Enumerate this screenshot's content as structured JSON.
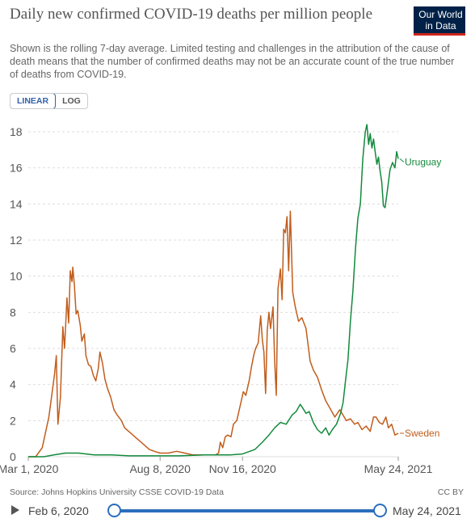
{
  "header": {
    "title": "Daily new confirmed COVID-19 deaths per million people",
    "subtitle": "Shown is the rolling 7-day average. Limited testing and challenges in the attribution of the cause of death means that the number of confirmed deaths may not be an accurate count of the true number of deaths from COVID-19.",
    "logo_line1": "Our World",
    "logo_line2": "in Data"
  },
  "scale_toggle": {
    "linear_label": "LINEAR",
    "log_label": "LOG",
    "active": "LINEAR"
  },
  "footer": {
    "source": "Source: Johns Hopkins University CSSE COVID-19 Data",
    "license": "CC BY"
  },
  "timeline": {
    "start_label": "Feb 6, 2020",
    "end_label": "May 24, 2021"
  },
  "colors": {
    "sweden": "#c15d1c",
    "uruguay": "#138a3c",
    "grid": "#dddddd",
    "slider": "#2c6ebc"
  },
  "chart_data": {
    "type": "line",
    "title": "Daily new confirmed COVID-19 deaths per million people",
    "xlabel": "",
    "ylabel": "",
    "x_range": [
      "2020-03-01",
      "2021-05-24"
    ],
    "ylim": [
      0,
      18
    ],
    "y_ticks": [
      0,
      2,
      4,
      6,
      8,
      10,
      12,
      14,
      16,
      18
    ],
    "x_tick_labels": [
      "Mar 1, 2020",
      "Aug 8, 2020",
      "Nov 16, 2020",
      "May 24, 2021"
    ],
    "x_tick_dates": [
      "2020-03-01",
      "2020-08-08",
      "2020-11-16",
      "2021-05-24"
    ],
    "grid": "horizontal",
    "legend": "end-of-line labels",
    "series": [
      {
        "name": "Sweden",
        "points": [
          [
            "2020-03-01",
            0
          ],
          [
            "2020-03-10",
            0
          ],
          [
            "2020-03-18",
            0.5
          ],
          [
            "2020-03-26",
            2.2
          ],
          [
            "2020-04-02",
            4.6
          ],
          [
            "2020-04-04",
            5.6
          ],
          [
            "2020-04-06",
            1.8
          ],
          [
            "2020-04-09",
            3.3
          ],
          [
            "2020-04-12",
            7.2
          ],
          [
            "2020-04-14",
            6.0
          ],
          [
            "2020-04-17",
            8.8
          ],
          [
            "2020-04-19",
            7.4
          ],
          [
            "2020-04-21",
            10.3
          ],
          [
            "2020-04-23",
            9.7
          ],
          [
            "2020-04-24",
            10.5
          ],
          [
            "2020-04-26",
            9.5
          ],
          [
            "2020-04-28",
            7.9
          ],
          [
            "2020-04-30",
            8.1
          ],
          [
            "2020-05-03",
            7.3
          ],
          [
            "2020-05-05",
            6.4
          ],
          [
            "2020-05-08",
            6.8
          ],
          [
            "2020-05-10",
            5.6
          ],
          [
            "2020-05-13",
            5.1
          ],
          [
            "2020-05-16",
            5.0
          ],
          [
            "2020-05-19",
            4.5
          ],
          [
            "2020-05-22",
            4.2
          ],
          [
            "2020-05-25",
            4.9
          ],
          [
            "2020-05-27",
            5.8
          ],
          [
            "2020-05-30",
            5.2
          ],
          [
            "2020-06-02",
            4.3
          ],
          [
            "2020-06-05",
            3.8
          ],
          [
            "2020-06-09",
            3.3
          ],
          [
            "2020-06-13",
            2.6
          ],
          [
            "2020-06-17",
            2.3
          ],
          [
            "2020-06-22",
            2.0
          ],
          [
            "2020-06-26",
            1.6
          ],
          [
            "2020-07-01",
            1.4
          ],
          [
            "2020-07-06",
            1.2
          ],
          [
            "2020-07-11",
            1.0
          ],
          [
            "2020-07-16",
            0.8
          ],
          [
            "2020-07-21",
            0.6
          ],
          [
            "2020-07-26",
            0.4
          ],
          [
            "2020-08-01",
            0.3
          ],
          [
            "2020-08-08",
            0.2
          ],
          [
            "2020-08-18",
            0.2
          ],
          [
            "2020-08-28",
            0.3
          ],
          [
            "2020-09-07",
            0.2
          ],
          [
            "2020-09-17",
            0.1
          ],
          [
            "2020-09-27",
            0.1
          ],
          [
            "2020-10-07",
            0.1
          ],
          [
            "2020-10-14",
            0.1
          ],
          [
            "2020-10-18",
            0.2
          ],
          [
            "2020-10-20",
            0.8
          ],
          [
            "2020-10-23",
            0.5
          ],
          [
            "2020-10-26",
            1.1
          ],
          [
            "2020-10-29",
            1.2
          ],
          [
            "2020-11-02",
            1.1
          ],
          [
            "2020-11-05",
            1.8
          ],
          [
            "2020-11-09",
            2.0
          ],
          [
            "2020-11-13",
            2.8
          ],
          [
            "2020-11-17",
            3.6
          ],
          [
            "2020-11-20",
            3.4
          ],
          [
            "2020-11-24",
            4.2
          ],
          [
            "2020-11-27",
            5.0
          ],
          [
            "2020-11-30",
            5.7
          ],
          [
            "2020-12-02",
            6.0
          ],
          [
            "2020-12-05",
            6.3
          ],
          [
            "2020-12-08",
            7.8
          ],
          [
            "2020-12-10",
            6.5
          ],
          [
            "2020-12-12",
            5.8
          ],
          [
            "2020-12-14",
            3.5
          ],
          [
            "2020-12-16",
            7.0
          ],
          [
            "2020-12-18",
            8.0
          ],
          [
            "2020-12-20",
            7.1
          ],
          [
            "2020-12-23",
            8.3
          ],
          [
            "2020-12-25",
            5.3
          ],
          [
            "2020-12-27",
            3.4
          ],
          [
            "2020-12-29",
            9.3
          ],
          [
            "2021-01-01",
            10.4
          ],
          [
            "2021-01-03",
            8.7
          ],
          [
            "2021-01-05",
            12.6
          ],
          [
            "2021-01-07",
            12.4
          ],
          [
            "2021-01-09",
            13.3
          ],
          [
            "2021-01-11",
            10.3
          ],
          [
            "2021-01-13",
            13.6
          ],
          [
            "2021-01-16",
            9.1
          ],
          [
            "2021-01-19",
            8.3
          ],
          [
            "2021-01-23",
            7.5
          ],
          [
            "2021-01-27",
            7.7
          ],
          [
            "2021-02-01",
            7.1
          ],
          [
            "2021-02-06",
            5.3
          ],
          [
            "2021-02-10",
            4.8
          ],
          [
            "2021-02-15",
            4.4
          ],
          [
            "2021-02-20",
            3.7
          ],
          [
            "2021-02-25",
            3.1
          ],
          [
            "2021-03-02",
            2.7
          ],
          [
            "2021-03-08",
            2.2
          ],
          [
            "2021-03-14",
            2.6
          ],
          [
            "2021-03-18",
            2.3
          ],
          [
            "2021-03-22",
            2.0
          ],
          [
            "2021-03-27",
            2.1
          ],
          [
            "2021-04-01",
            1.8
          ],
          [
            "2021-04-05",
            1.9
          ],
          [
            "2021-04-10",
            1.5
          ],
          [
            "2021-04-15",
            1.7
          ],
          [
            "2021-04-20",
            1.4
          ],
          [
            "2021-04-24",
            2.2
          ],
          [
            "2021-04-27",
            2.2
          ],
          [
            "2021-05-01",
            1.9
          ],
          [
            "2021-05-05",
            1.8
          ],
          [
            "2021-05-09",
            2.2
          ],
          [
            "2021-05-12",
            1.6
          ],
          [
            "2021-05-16",
            1.8
          ],
          [
            "2021-05-20",
            1.2
          ],
          [
            "2021-05-24",
            1.3
          ]
        ]
      },
      {
        "name": "Uruguay",
        "points": [
          [
            "2020-03-01",
            0
          ],
          [
            "2020-03-20",
            0
          ],
          [
            "2020-04-01",
            0.1
          ],
          [
            "2020-04-15",
            0.2
          ],
          [
            "2020-05-01",
            0.2
          ],
          [
            "2020-05-20",
            0.1
          ],
          [
            "2020-06-10",
            0.1
          ],
          [
            "2020-07-01",
            0.05
          ],
          [
            "2020-08-01",
            0.05
          ],
          [
            "2020-09-01",
            0.05
          ],
          [
            "2020-10-01",
            0.1
          ],
          [
            "2020-11-01",
            0.1
          ],
          [
            "2020-11-16",
            0.15
          ],
          [
            "2020-12-01",
            0.4
          ],
          [
            "2020-12-10",
            0.8
          ],
          [
            "2020-12-18",
            1.2
          ],
          [
            "2020-12-25",
            1.6
          ],
          [
            "2021-01-01",
            1.9
          ],
          [
            "2021-01-08",
            1.8
          ],
          [
            "2021-01-15",
            2.3
          ],
          [
            "2021-01-20",
            2.5
          ],
          [
            "2021-01-25",
            2.9
          ],
          [
            "2021-01-28",
            2.7
          ],
          [
            "2021-02-01",
            2.4
          ],
          [
            "2021-02-05",
            2.5
          ],
          [
            "2021-02-10",
            1.9
          ],
          [
            "2021-02-15",
            1.5
          ],
          [
            "2021-02-20",
            1.3
          ],
          [
            "2021-02-25",
            1.6
          ],
          [
            "2021-03-01",
            1.2
          ],
          [
            "2021-03-05",
            1.5
          ],
          [
            "2021-03-10",
            1.8
          ],
          [
            "2021-03-15",
            2.4
          ],
          [
            "2021-03-18",
            3.0
          ],
          [
            "2021-03-21",
            4.2
          ],
          [
            "2021-03-24",
            5.4
          ],
          [
            "2021-03-27",
            7.5
          ],
          [
            "2021-03-30",
            9.2
          ],
          [
            "2021-04-02",
            11.5
          ],
          [
            "2021-04-05",
            13.2
          ],
          [
            "2021-04-08",
            14.0
          ],
          [
            "2021-04-11",
            16.5
          ],
          [
            "2021-04-14",
            18.0
          ],
          [
            "2021-04-16",
            18.4
          ],
          [
            "2021-04-18",
            17.3
          ],
          [
            "2021-04-20",
            17.9
          ],
          [
            "2021-04-22",
            17.1
          ],
          [
            "2021-04-24",
            17.6
          ],
          [
            "2021-04-26",
            16.9
          ],
          [
            "2021-04-28",
            16.2
          ],
          [
            "2021-04-30",
            16.6
          ],
          [
            "2021-05-02",
            15.8
          ],
          [
            "2021-05-04",
            15.2
          ],
          [
            "2021-05-06",
            13.9
          ],
          [
            "2021-05-08",
            13.8
          ],
          [
            "2021-05-11",
            14.8
          ],
          [
            "2021-05-14",
            15.9
          ],
          [
            "2021-05-17",
            16.3
          ],
          [
            "2021-05-20",
            16.0
          ],
          [
            "2021-05-22",
            16.9
          ],
          [
            "2021-05-24",
            16.5
          ]
        ]
      }
    ]
  }
}
